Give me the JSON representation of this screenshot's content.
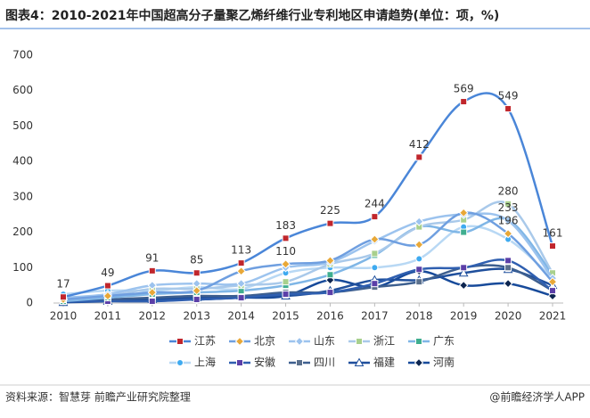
{
  "chart_data": {
    "type": "line",
    "title": "图表4：2010-2021年中国超高分子量聚乙烯纤维行业专利地区申请趋势(单位：项，%)",
    "source": "资料来源：智慧芽 前瞻产业研究院整理",
    "brand": "@前瞻经济学人APP",
    "x": [
      2010,
      2011,
      2012,
      2013,
      2014,
      2015,
      2016,
      2017,
      2018,
      2019,
      2020,
      2021
    ],
    "xlim": [
      2010,
      2021
    ],
    "xticks": [
      2010,
      2011,
      2012,
      2013,
      2014,
      2015,
      2016,
      2017,
      2018,
      2019,
      2020,
      2021
    ],
    "ylim": [
      0,
      700
    ],
    "yticks": [
      0,
      100,
      200,
      300,
      400,
      500,
      600,
      700
    ],
    "grid": false,
    "legend": "bottom",
    "series": [
      {
        "name": "江苏",
        "color": "#4a86d8",
        "marker_color": "#c0262c",
        "marker": "square",
        "values": [
          17,
          49,
          91,
          85,
          113,
          183,
          225,
          244,
          412,
          569,
          549,
          161
        ],
        "value_labels": [
          "17",
          "49",
          "91",
          "85",
          "113",
          "183",
          "225",
          "244",
          "412",
          "569",
          "549",
          "161"
        ]
      },
      {
        "name": "北京",
        "color": "#6f9fe0",
        "marker_color": "#e8a838",
        "marker": "diamond",
        "values": [
          10,
          20,
          30,
          35,
          90,
          110,
          120,
          180,
          165,
          255,
          196,
          60
        ],
        "value_labels": [
          null,
          null,
          null,
          null,
          null,
          "110",
          null,
          null,
          null,
          null,
          "196",
          null
        ]
      },
      {
        "name": "山东",
        "color": "#9cc3ee",
        "marker_color": "#9cc3ee",
        "marker": "diamond",
        "values": [
          15,
          25,
          50,
          55,
          55,
          100,
          115,
          175,
          230,
          250,
          233,
          70
        ],
        "value_labels": [
          null,
          null,
          null,
          null,
          null,
          null,
          null,
          null,
          null,
          null,
          "233",
          null
        ]
      },
      {
        "name": "浙江",
        "color": "#a9c9ea",
        "marker_color": "#a8d08d",
        "marker": "square",
        "values": [
          10,
          20,
          40,
          40,
          50,
          60,
          110,
          140,
          215,
          235,
          280,
          85
        ],
        "value_labels": [
          null,
          null,
          null,
          null,
          null,
          null,
          null,
          null,
          null,
          null,
          "280",
          null
        ]
      },
      {
        "name": "广东",
        "color": "#7fb6e6",
        "marker_color": "#3fae8f",
        "marker": "square",
        "values": [
          5,
          15,
          25,
          30,
          35,
          50,
          80,
          135,
          215,
          200,
          235,
          80
        ]
      },
      {
        "name": "上海",
        "color": "#b8d8f4",
        "marker_color": "#3eaaf0",
        "marker": "circle",
        "values": [
          25,
          35,
          35,
          45,
          40,
          85,
          100,
          100,
          125,
          215,
          180,
          70
        ]
      },
      {
        "name": "安徽",
        "color": "#2f5fb0",
        "marker_color": "#5b3fa8",
        "marker": "square",
        "values": [
          5,
          5,
          5,
          10,
          15,
          25,
          30,
          55,
          95,
          100,
          120,
          35
        ]
      },
      {
        "name": "四川",
        "color": "#3d5f8f",
        "marker_color": "#5a6f8c",
        "marker": "square",
        "values": [
          5,
          10,
          15,
          20,
          20,
          30,
          30,
          45,
          60,
          100,
          100,
          35
        ]
      },
      {
        "name": "福建",
        "color": "#1f4f9c",
        "marker_color": "#ffffff",
        "marker": "triangle",
        "values": [
          2,
          5,
          10,
          15,
          20,
          20,
          35,
          65,
          65,
          85,
          95,
          50
        ]
      },
      {
        "name": "河南",
        "color": "#174a9a",
        "marker_color": "#0d2550",
        "marker": "diamond",
        "values": [
          5,
          10,
          10,
          10,
          15,
          20,
          65,
          45,
          90,
          50,
          55,
          20
        ]
      }
    ]
  }
}
